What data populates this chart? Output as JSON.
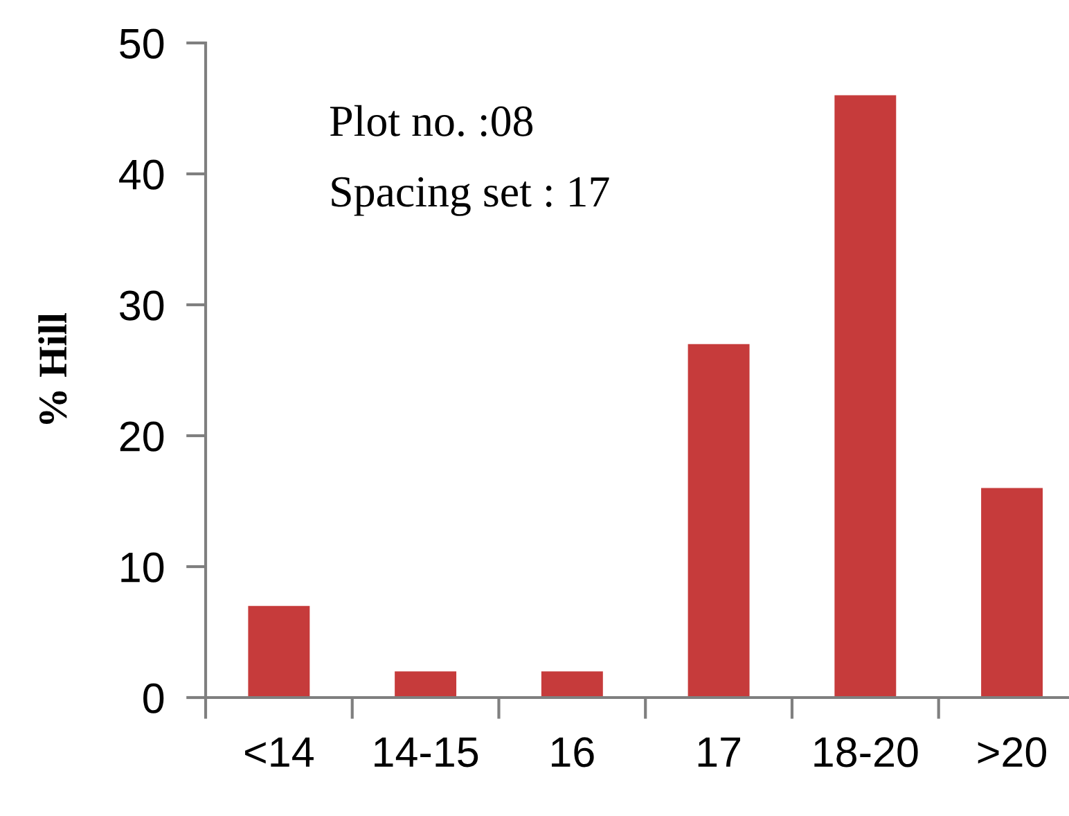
{
  "chart_data": {
    "type": "bar",
    "categories": [
      "<14",
      "14-15",
      "16",
      "17",
      "18-20",
      ">20"
    ],
    "values": [
      7,
      2,
      2,
      27,
      46,
      16
    ],
    "color": "#c63b3b",
    "ylabel": "% Hill",
    "ylim": [
      0,
      50
    ],
    "yticks": [
      0,
      10,
      20,
      30,
      40,
      50
    ],
    "annotations": [
      "Plot no. :08",
      "Spacing set : 17"
    ],
    "grid": false,
    "legend": false
  }
}
